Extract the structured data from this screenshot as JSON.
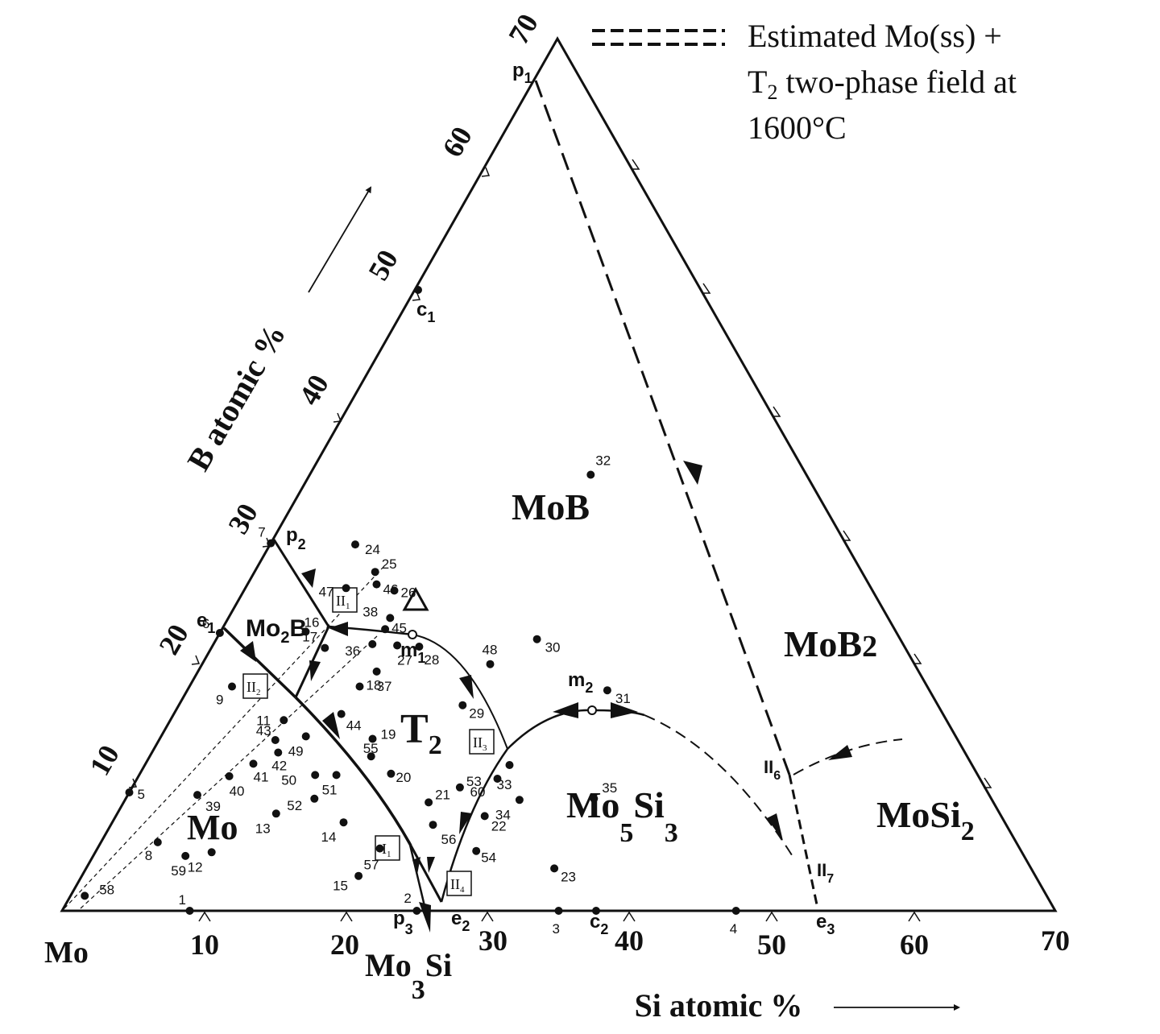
{
  "legend": {
    "line1": "Estimated Mo(ss) +",
    "line2": "T",
    "line2_sub": "2",
    "line2_rest": " two-phase field at",
    "line3": "1600°C"
  },
  "axes": {
    "b_axis_label": "B atomic %",
    "si_axis_label": "Si atomic %",
    "mo_corner": "Mo",
    "b_ticks": [
      "10",
      "20",
      "30",
      "40",
      "50",
      "60",
      "70"
    ],
    "si_ticks": [
      "10",
      "20",
      "30",
      "40",
      "50",
      "60",
      "70"
    ]
  },
  "phases": {
    "mob": "MoB",
    "mob2_base": "MoB",
    "mob2_sub": "2",
    "mo2b_a": "Mo",
    "mo2b_sub": "2",
    "mo2b_b": "B",
    "t2_base": "T",
    "t2_sub": "2",
    "mo": "Mo",
    "mo5si3_a": "Mo",
    "mo5si3_s1": "5",
    "mo5si3_b": "Si",
    "mo5si3_s2": "3",
    "mosi2_base": "MoSi",
    "mosi2_sub": "2",
    "mo3si_base": "Mo",
    "mo3si_sub": "3",
    "mo3si_b": "Si"
  },
  "invariants": {
    "p1": "p",
    "p1_sub": "1",
    "p2": "p",
    "p2_sub": "2",
    "p3": "p",
    "p3_sub": "3",
    "e1": "e",
    "e1_sub": "1",
    "e2": "e",
    "e2_sub": "2",
    "e3": "e",
    "e3_sub": "3",
    "c1": "c",
    "c1_sub": "1",
    "c2": "c",
    "c2_sub": "2",
    "m1": "m",
    "m1_sub": "1",
    "m2": "m",
    "m2_sub": "2",
    "II1": "II",
    "II1_sub": "1",
    "II2": "II",
    "II2_sub": "2",
    "II3": "II",
    "II3_sub": "3",
    "II4": "II",
    "II4_sub": "4",
    "I1": "I",
    "I1_sub": "1",
    "II6": "II",
    "II6_sub": "6",
    "II7": "II",
    "II7_sub": "7"
  },
  "samples": [
    {
      "id": "1",
      "si": 9,
      "b": 0
    },
    {
      "id": "2",
      "si": 25,
      "b": 0
    },
    {
      "id": "3",
      "si": 35,
      "b": 0
    },
    {
      "id": "4",
      "si": 47.5,
      "b": 0
    },
    {
      "id": "5",
      "si": 0,
      "b": 9.5
    },
    {
      "id": "6",
      "si": 0,
      "b": 22.3
    },
    {
      "id": "7",
      "si": 0,
      "b": 29.5
    },
    {
      "id": "8",
      "si": 4,
      "b": 5.5
    },
    {
      "id": "9",
      "si": 3,
      "b": 18
    },
    {
      "id": "11",
      "si": 8,
      "b": 15.3
    },
    {
      "id": "12",
      "si": 8.2,
      "b": 4.7
    },
    {
      "id": "13",
      "si": 11.2,
      "b": 7.8
    },
    {
      "id": "14",
      "si": 16.3,
      "b": 7.1
    },
    {
      "id": "15",
      "si": 19.5,
      "b": 2.8
    },
    {
      "id": "16",
      "si": 6,
      "b": 22.4
    },
    {
      "id": "17",
      "si": 8,
      "b": 21.1
    },
    {
      "id": "18",
      "si": 12,
      "b": 18
    },
    {
      "id": "19",
      "si": 15,
      "b": 13.8
    },
    {
      "id": "20",
      "si": 17.7,
      "b": 11
    },
    {
      "id": "21",
      "si": 21.5,
      "b": 8.7
    },
    {
      "id": "22",
      "si": 26,
      "b": 7.6
    },
    {
      "id": "23",
      "si": 33,
      "b": 3.4
    },
    {
      "id": "24",
      "si": 6,
      "b": 29.4
    },
    {
      "id": "25",
      "si": 8.5,
      "b": 27.2
    },
    {
      "id": "26",
      "si": 10.6,
      "b": 25.7
    },
    {
      "id": "27",
      "si": 13,
      "b": 21.3
    },
    {
      "id": "28",
      "si": 14.6,
      "b": 21.2
    },
    {
      "id": "29",
      "si": 20,
      "b": 16.5
    },
    {
      "id": "30",
      "si": 22.6,
      "b": 21.8
    },
    {
      "id": "31",
      "si": 29.6,
      "b": 17.7
    },
    {
      "id": "32",
      "si": 19.8,
      "b": 35
    },
    {
      "id": "33",
      "si": 25.7,
      "b": 11.7
    },
    {
      "id": "34",
      "si": 27.8,
      "b": 8.9
    },
    {
      "id": "35",
      "si": 33,
      "b": 9
    },
    {
      "id": "36",
      "si": 11.2,
      "b": 21.4
    },
    {
      "id": "37",
      "si": 12.6,
      "b": 19.2
    },
    {
      "id": "38",
      "si": 11.4,
      "b": 23.5
    },
    {
      "id": "39",
      "si": 4.9,
      "b": 9.3
    },
    {
      "id": "40",
      "si": 6.4,
      "b": 10.8
    },
    {
      "id": "41",
      "si": 7.6,
      "b": 11.8
    },
    {
      "id": "42",
      "si": 8.9,
      "b": 12.7
    },
    {
      "id": "43",
      "si": 8.2,
      "b": 13.7
    },
    {
      "id": "44",
      "si": 11.8,
      "b": 15.8
    },
    {
      "id": "45",
      "si": 11.5,
      "b": 22.6
    },
    {
      "id": "46",
      "si": 9.1,
      "b": 26.2
    },
    {
      "id": "47",
      "si": 7.1,
      "b": 25.9
    },
    {
      "id": "48",
      "si": 20.3,
      "b": 19.8
    },
    {
      "id": "49",
      "si": 10.2,
      "b": 14
    },
    {
      "id": "50",
      "si": 12.4,
      "b": 10.9
    },
    {
      "id": "51",
      "si": 13.9,
      "b": 10.9
    },
    {
      "id": "52",
      "si": 13.3,
      "b": 9
    },
    {
      "id": "53",
      "si": 23.1,
      "b": 9.9
    },
    {
      "id": "54",
      "si": 26.8,
      "b": 4.8
    },
    {
      "id": "55",
      "si": 15.6,
      "b": 12.4
    },
    {
      "id": "56",
      "si": 22.7,
      "b": 6.9
    },
    {
      "id": "57",
      "si": 19.9,
      "b": 5
    },
    {
      "id": "58",
      "si": 1,
      "b": 1.2
    },
    {
      "id": "59",
      "si": 6.5,
      "b": 4.4
    },
    {
      "id": "60",
      "si": 25.4,
      "b": 10.6
    }
  ]
}
